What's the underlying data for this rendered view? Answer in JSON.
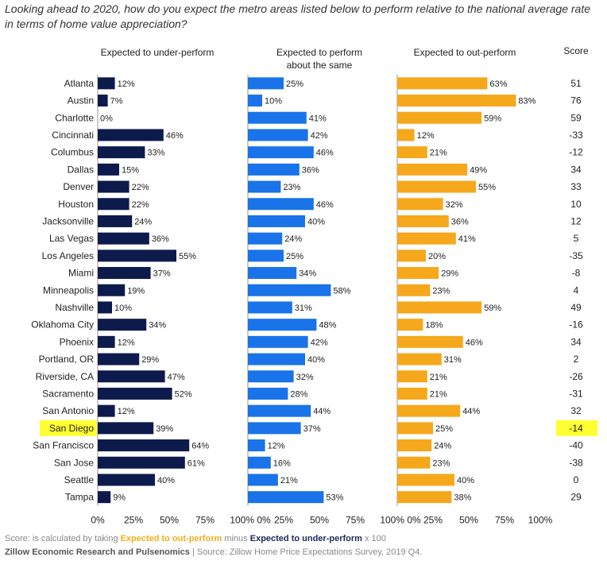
{
  "title": "Looking ahead to 2020, how do you expect the metro areas listed below to perform relative to the national average rate in terms of home value appreciation?",
  "chart_data": {
    "type": "bar",
    "orientation": "horizontal",
    "panels": [
      {
        "name": "Expected to under-perform",
        "color": "#0d1b4c"
      },
      {
        "name": "Expected to perform\nabout the same",
        "color": "#1a73e8"
      },
      {
        "name": "Expected to out-perform",
        "color": "#f5a81c"
      }
    ],
    "score_header": "Score",
    "xlim": [
      0,
      100
    ],
    "ticks": [
      "0%",
      "25%",
      "50%",
      "75%",
      "100%"
    ],
    "highlight_category": "San Diego",
    "highlight_color": "#ffff33",
    "categories": [
      "Atlanta",
      "Austin",
      "Charlotte",
      "Cincinnati",
      "Columbus",
      "Dallas",
      "Denver",
      "Houston",
      "Jacksonville",
      "Las Vegas",
      "Los Angeles",
      "Miami",
      "Minneapolis",
      "Nashville",
      "Oklahoma City",
      "Phoenix",
      "Portland, OR",
      "Riverside, CA",
      "Sacramento",
      "San Antonio",
      "San Diego",
      "San Francisco",
      "San Jose",
      "Seattle",
      "Tampa"
    ],
    "series": [
      {
        "name": "Expected to under-perform",
        "values": [
          12,
          7,
          0,
          46,
          33,
          15,
          22,
          22,
          24,
          36,
          55,
          37,
          19,
          10,
          34,
          12,
          29,
          47,
          52,
          12,
          39,
          64,
          61,
          40,
          9
        ]
      },
      {
        "name": "Expected to perform about the same",
        "values": [
          25,
          10,
          41,
          42,
          46,
          36,
          23,
          46,
          40,
          24,
          25,
          34,
          58,
          31,
          48,
          42,
          40,
          32,
          28,
          44,
          37,
          12,
          16,
          21,
          53
        ]
      },
      {
        "name": "Expected to out-perform",
        "values": [
          63,
          83,
          59,
          12,
          21,
          49,
          55,
          32,
          36,
          41,
          20,
          29,
          23,
          59,
          18,
          46,
          31,
          21,
          21,
          44,
          25,
          24,
          23,
          40,
          38
        ]
      }
    ],
    "scores": [
      51,
      76,
      59,
      -33,
      -12,
      34,
      33,
      10,
      12,
      5,
      -35,
      -8,
      4,
      49,
      -16,
      34,
      2,
      -26,
      -31,
      32,
      -14,
      -40,
      -38,
      0,
      29
    ]
  },
  "footnote": {
    "prefix": "Score: is calculated by taking ",
    "out_label": "Expected to out-perform",
    "middle": " minus ",
    "under_label": "Expected to under-perform",
    "suffix": " x 100"
  },
  "source": {
    "org": "Zillow Economic Research and Pulsenomics",
    "separator": " | ",
    "text": "Source: Zillow Home Price Expectations Survey, 2019 Q4."
  }
}
